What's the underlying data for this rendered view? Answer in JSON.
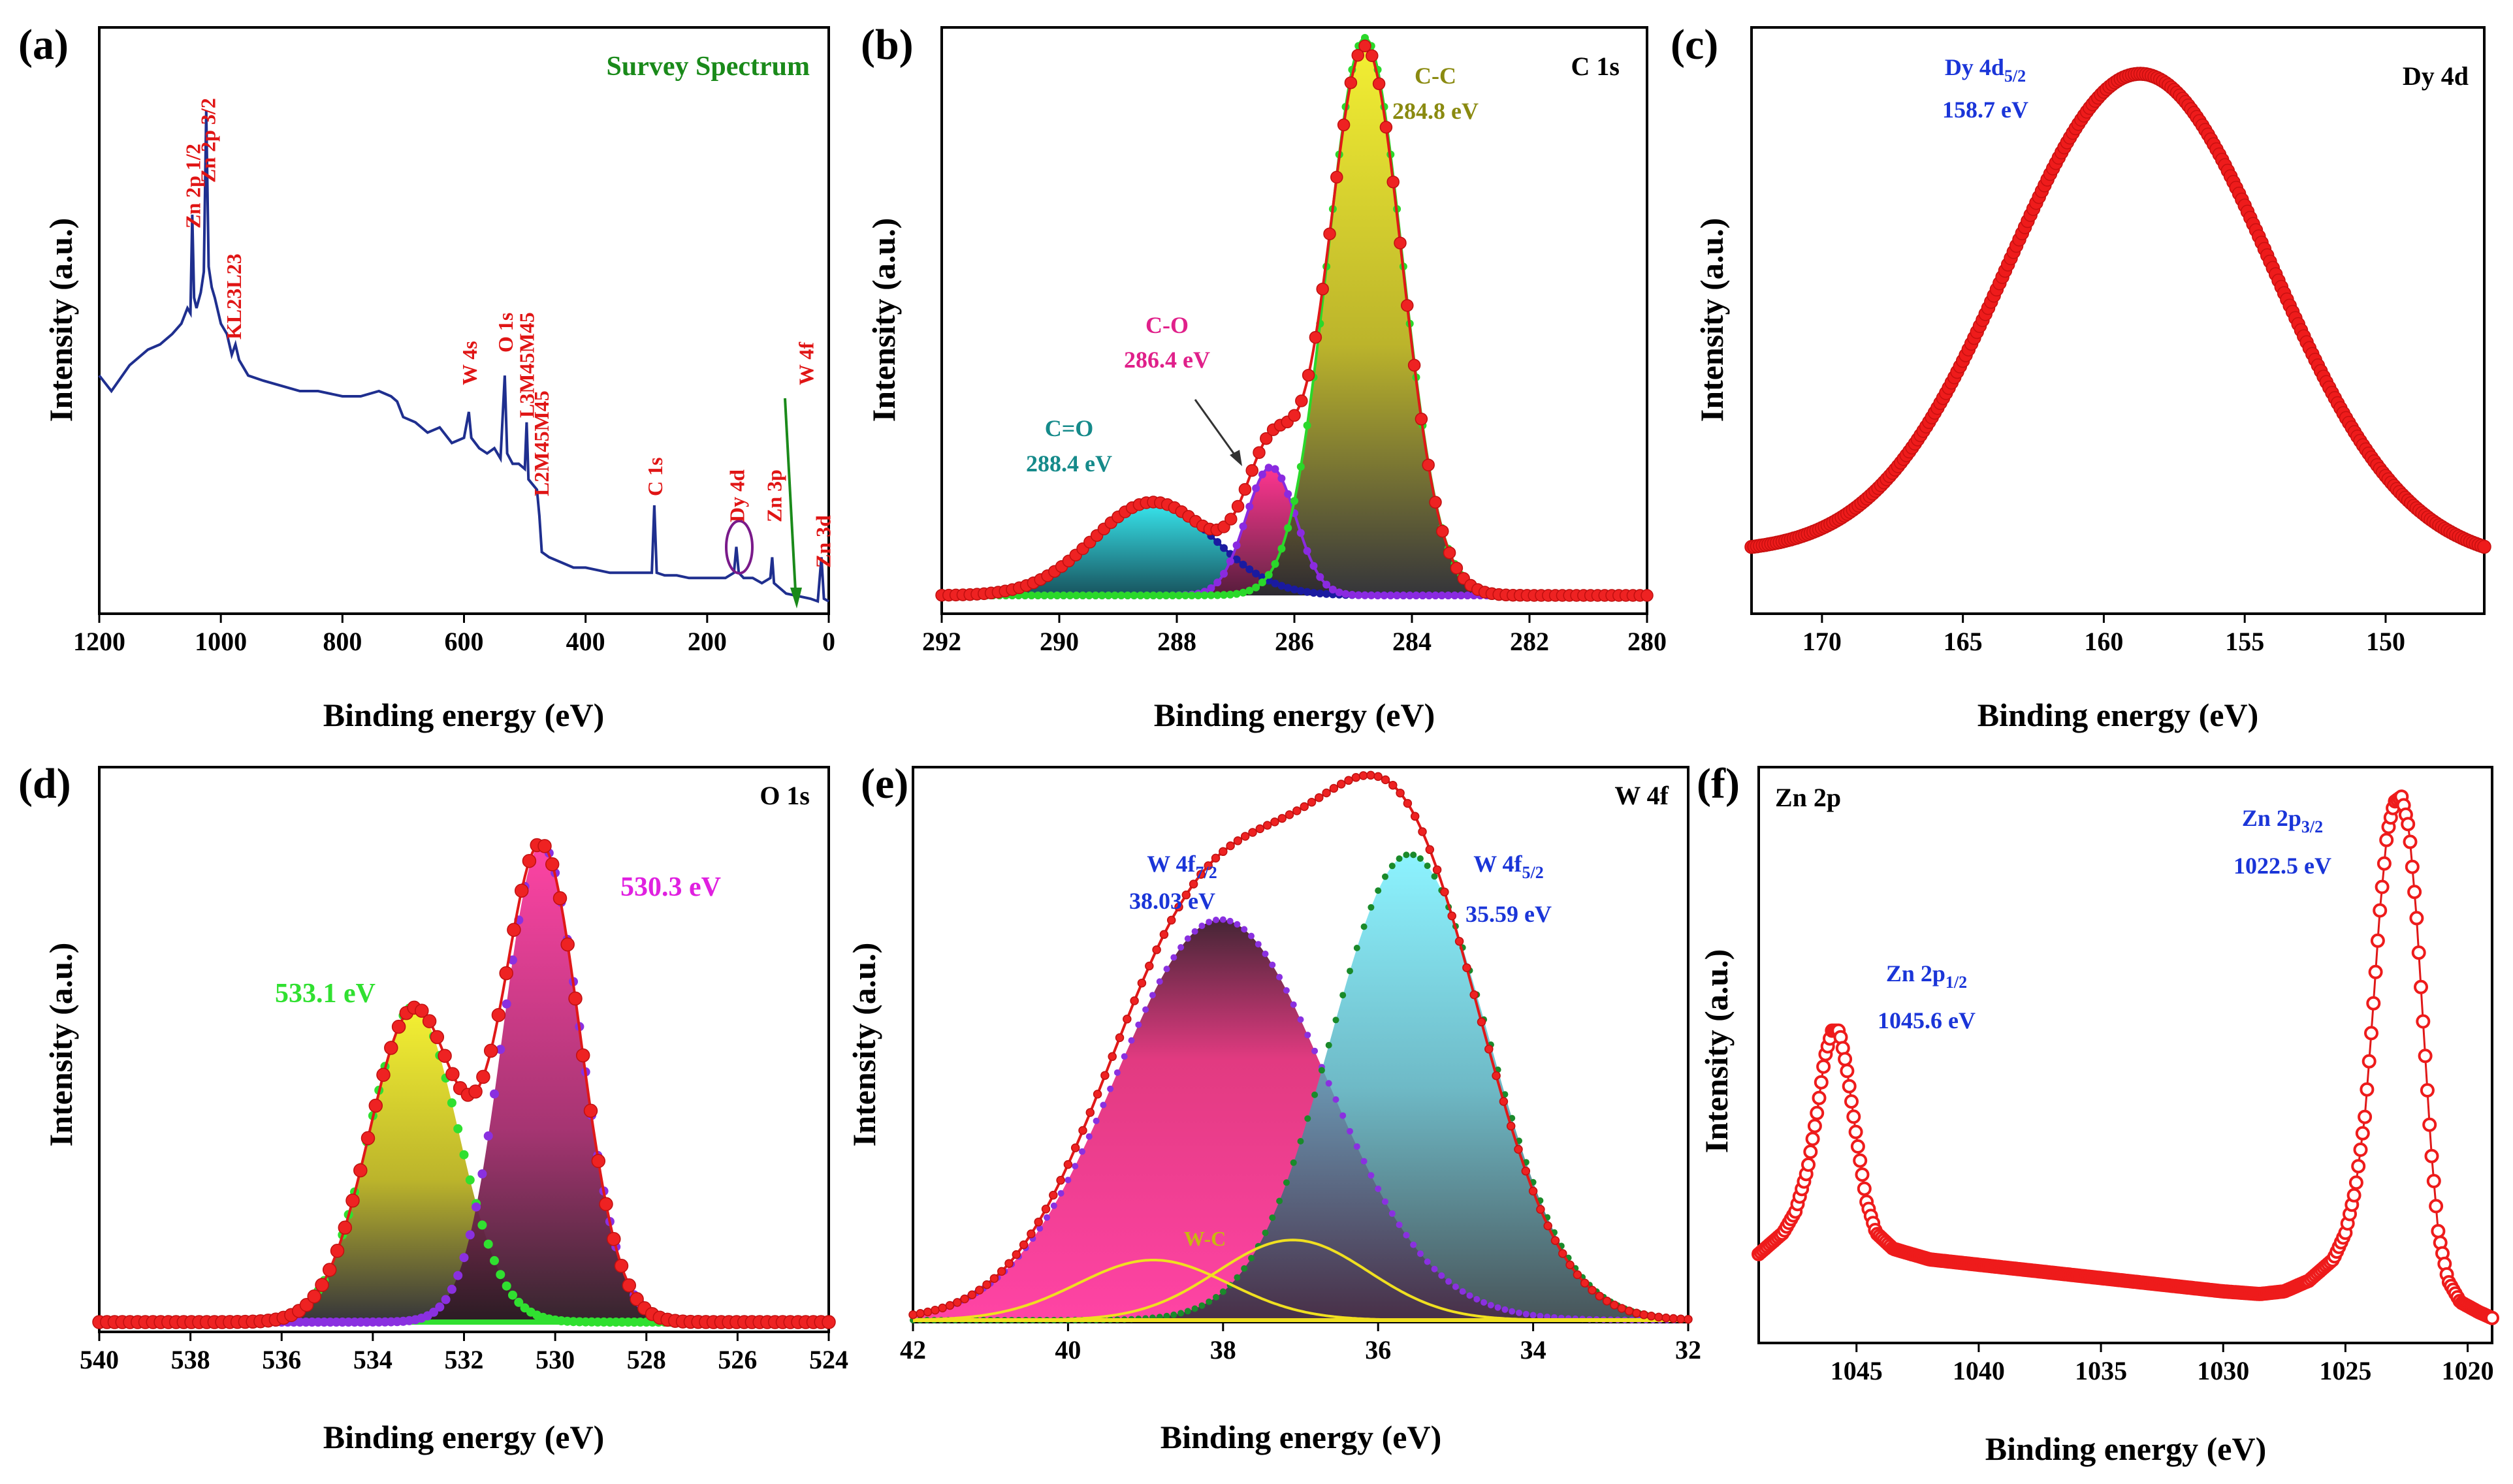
{
  "chart_data": [
    {
      "panel": "(a)",
      "type": "line",
      "title": "Survey Spectrum",
      "xlabel": "Binding energy (eV)",
      "ylabel": "Intensity (a.u.)",
      "xlim": [
        1200,
        0
      ],
      "ylim": [
        0,
        100
      ],
      "xticks": [
        "1200",
        "1000",
        "800",
        "600",
        "400",
        "200",
        "0"
      ],
      "colors": {
        "line": "#1f2f8f",
        "label": "#e01515",
        "title": "#1a8a1a",
        "arrow": "#1a8a1a",
        "circle": "#7a1a8a"
      },
      "series": [
        {
          "name": "Survey",
          "points": [
            [
              1200,
              44
            ],
            [
              1180,
              41
            ],
            [
              1150,
              46
            ],
            [
              1120,
              49
            ],
            [
              1100,
              50
            ],
            [
              1080,
              52
            ],
            [
              1065,
              54
            ],
            [
              1055,
              57
            ],
            [
              1050,
              56
            ],
            [
              1047,
              75
            ],
            [
              1044,
              59
            ],
            [
              1040,
              57
            ],
            [
              1033,
              60
            ],
            [
              1028,
              64
            ],
            [
              1024,
              95
            ],
            [
              1020,
              65
            ],
            [
              1015,
              61
            ],
            [
              1010,
              59
            ],
            [
              1000,
              54
            ],
            [
              990,
              52
            ],
            [
              982,
              48
            ],
            [
              976,
              50
            ],
            [
              970,
              47
            ],
            [
              955,
              44
            ],
            [
              930,
              43
            ],
            [
              900,
              42
            ],
            [
              870,
              41
            ],
            [
              840,
              41
            ],
            [
              800,
              40
            ],
            [
              770,
              40
            ],
            [
              740,
              41
            ],
            [
              720,
              40
            ],
            [
              710,
              39
            ],
            [
              700,
              36
            ],
            [
              680,
              35
            ],
            [
              660,
              33
            ],
            [
              640,
              34
            ],
            [
              620,
              31
            ],
            [
              600,
              32
            ],
            [
              592,
              37
            ],
            [
              588,
              32
            ],
            [
              575,
              30
            ],
            [
              562,
              29
            ],
            [
              550,
              30
            ],
            [
              540,
              28
            ],
            [
              533,
              44
            ],
            [
              529,
              29
            ],
            [
              520,
              27
            ],
            [
              510,
              27
            ],
            [
              500,
              26
            ],
            [
              497,
              35
            ],
            [
              494,
              24
            ],
            [
              480,
              22
            ],
            [
              476,
              17
            ],
            [
              472,
              10
            ],
            [
              460,
              9
            ],
            [
              440,
              8
            ],
            [
              420,
              7
            ],
            [
              400,
              7
            ],
            [
              380,
              6.5
            ],
            [
              360,
              6
            ],
            [
              340,
              6
            ],
            [
              320,
              6
            ],
            [
              300,
              6
            ],
            [
              291,
              6
            ],
            [
              287,
              19
            ],
            [
              283,
              6
            ],
            [
              270,
              5.5
            ],
            [
              250,
              5.5
            ],
            [
              230,
              5
            ],
            [
              210,
              5
            ],
            [
              190,
              5
            ],
            [
              170,
              5
            ],
            [
              156,
              6
            ],
            [
              152,
              11
            ],
            [
              148,
              6
            ],
            [
              140,
              5
            ],
            [
              125,
              5
            ],
            [
              110,
              4
            ],
            [
              96,
              5
            ],
            [
              93,
              9
            ],
            [
              90,
              4
            ],
            [
              80,
              3
            ],
            [
              70,
              2
            ],
            [
              50,
              1.5
            ],
            [
              30,
              1
            ],
            [
              18,
              0.5
            ],
            [
              12,
              9
            ],
            [
              8,
              1
            ],
            [
              0,
              0.5
            ]
          ]
        }
      ],
      "annotations": [
        {
          "label": "Zn 2p",
          "sub": "1/2",
          "x": 1047
        },
        {
          "label": "Zn 2p",
          "sub": "3/2",
          "x": 1022
        },
        {
          "label": "KL23L23",
          "x": 980
        },
        {
          "label": "W 4s",
          "x": 592
        },
        {
          "label": "O 1s",
          "x": 533
        },
        {
          "label": "L3M45M45",
          "x": 498
        },
        {
          "label": "L2M45M45",
          "x": 474
        },
        {
          "label": "C 1s",
          "x": 287
        },
        {
          "label": "Dy 4d",
          "x": 152
        },
        {
          "label": "Zn 3p",
          "x": 91
        },
        {
          "label": "W 4f",
          "x": 38
        },
        {
          "label": "Zn 3d",
          "x": 10
        }
      ]
    },
    {
      "panel": "(b)",
      "type": "line",
      "title": "C 1s",
      "xlabel": "Binding energy (eV)",
      "ylabel": "Intensity (a.u.)",
      "xlim": [
        292,
        280
      ],
      "ylim": [
        0,
        100
      ],
      "xticks": [
        "292",
        "290",
        "288",
        "286",
        "284",
        "282",
        "280"
      ],
      "series": [
        {
          "name": "C=O",
          "center": 288.4,
          "height": 17,
          "fwhm": 2.4,
          "color": "#23c4cc"
        },
        {
          "name": "C-O",
          "center": 286.4,
          "height": 23,
          "fwhm": 1.0,
          "color": "#e0407a"
        },
        {
          "name": "C-C",
          "center": 284.8,
          "height": 100,
          "fwhm": 1.5,
          "color": "#e8e020"
        }
      ],
      "annotations": [
        {
          "label": "C-C",
          "value": "284.8 eV",
          "color": "#8a8a10"
        },
        {
          "label": "C-O",
          "value": "286.4 eV",
          "color": "#e0208a"
        },
        {
          "label": "C=O",
          "value": "288.4 eV",
          "color": "#158a8a"
        }
      ]
    },
    {
      "panel": "(c)",
      "type": "scatter",
      "title": "Dy 4d",
      "xlabel": "Binding energy (eV)",
      "ylabel": "Intensity (a.u.)",
      "xlim": [
        172.5,
        146.5
      ],
      "ylim": [
        0,
        100
      ],
      "xticks": [
        "170",
        "165",
        "160",
        "155",
        "150"
      ],
      "series": [
        {
          "name": "Dy 4d",
          "center": 158.7,
          "height": 100,
          "fwhm": 11,
          "baseline_left": 2,
          "baseline_right": 0,
          "color": "#ee1b1b"
        }
      ],
      "annotations": [
        {
          "label": "Dy 4d",
          "sub": "5/2",
          "value": "158.7 eV",
          "color": "#1a35d8"
        }
      ]
    },
    {
      "panel": "(d)",
      "type": "line",
      "title": "O 1s",
      "xlabel": "Binding energy (eV)",
      "ylabel": "Intensity (a.u.)",
      "xlim": [
        540,
        524
      ],
      "ylim": [
        0,
        100
      ],
      "xticks": [
        "540",
        "538",
        "536",
        "534",
        "532",
        "530",
        "528",
        "526",
        "524"
      ],
      "series": [
        {
          "name": "533.1 eV",
          "center": 533.1,
          "height": 64,
          "fwhm": 2.3,
          "color": "#e8e020"
        },
        {
          "name": "530.3 eV",
          "center": 530.3,
          "height": 97,
          "fwhm": 2.0,
          "color": "#ee3090"
        }
      ],
      "annotations": [
        {
          "value": "530.3 eV",
          "color": "#e020e0"
        },
        {
          "value": "533.1 eV",
          "color": "#30e030"
        }
      ]
    },
    {
      "panel": "(e)",
      "type": "line",
      "title": "W 4f",
      "xlabel": "Binding energy (eV)",
      "ylabel": "Intensity (a.u.)",
      "xlim": [
        42,
        32
      ],
      "ylim": [
        0,
        100
      ],
      "xticks": [
        "42",
        "40",
        "38",
        "36",
        "34",
        "32"
      ],
      "series": [
        {
          "name": "W 4f7/2",
          "center": 38.03,
          "height": 80,
          "fwhm": 3.2,
          "color": "#ee3090"
        },
        {
          "name": "W 4f5/2",
          "center": 35.59,
          "height": 93,
          "fwhm": 2.4,
          "color": "#40e0f0"
        },
        {
          "name": "W-C",
          "center": 38.9,
          "height": 12,
          "fwhm": 2.3,
          "color": "#f0e020"
        },
        {
          "name": "W-C",
          "center": 37.1,
          "height": 16,
          "fwhm": 2.3,
          "color": "#f0e020"
        }
      ],
      "annotations": [
        {
          "label": "W 4f",
          "sub": "7/2",
          "value": "38.03 eV",
          "color": "#1a35d8"
        },
        {
          "label": "W 4f",
          "sub": "5/2",
          "value": "35.59 eV",
          "color": "#1a35d8"
        },
        {
          "label": "W-C",
          "color": "#c8b810"
        }
      ]
    },
    {
      "panel": "(f)",
      "type": "scatter",
      "title": "Zn 2p",
      "xlabel": "Binding energy (eV)",
      "ylabel": "Intensity (a.u.)",
      "xlim": [
        1049,
        1019
      ],
      "ylim": [
        0,
        100
      ],
      "xticks": [
        "1045",
        "1040",
        "1035",
        "1030",
        "1025",
        "1020"
      ],
      "series": [
        {
          "name": "Zn 2p",
          "color": "#ee1b1b",
          "points": [
            [
              1049,
              14
            ],
            [
              1048.5,
              16
            ],
            [
              1048,
              18
            ],
            [
              1047.5,
              22
            ],
            [
              1047,
              30
            ],
            [
              1046.6,
              41
            ],
            [
              1046.3,
              51
            ],
            [
              1046,
              56
            ],
            [
              1045.7,
              56
            ],
            [
              1045.4,
              49
            ],
            [
              1045,
              36
            ],
            [
              1044.6,
              24
            ],
            [
              1044.2,
              18
            ],
            [
              1043.5,
              15
            ],
            [
              1042,
              13
            ],
            [
              1040,
              12
            ],
            [
              1038,
              11
            ],
            [
              1036,
              10
            ],
            [
              1034,
              9
            ],
            [
              1032,
              8
            ],
            [
              1030,
              7
            ],
            [
              1028.5,
              6.5
            ],
            [
              1027.5,
              7
            ],
            [
              1026.5,
              9
            ],
            [
              1025.5,
              13
            ],
            [
              1025,
              18
            ],
            [
              1024.6,
              26
            ],
            [
              1024.2,
              40
            ],
            [
              1023.9,
              58
            ],
            [
              1023.6,
              78
            ],
            [
              1023.3,
              93
            ],
            [
              1023,
              99
            ],
            [
              1022.7,
              100
            ],
            [
              1022.4,
              94
            ],
            [
              1022.1,
              78
            ],
            [
              1021.8,
              56
            ],
            [
              1021.5,
              34
            ],
            [
              1021.2,
              18
            ],
            [
              1020.8,
              9
            ],
            [
              1020.3,
              5
            ],
            [
              1019.5,
              3
            ],
            [
              1019,
              2
            ]
          ]
        }
      ],
      "annotations": [
        {
          "label": "Zn 2p",
          "sub": "3/2",
          "value": "1022.5 eV",
          "color": "#1a35d8"
        },
        {
          "label": "Zn 2p",
          "sub": "1/2",
          "value": "1045.6 eV",
          "color": "#1a35d8"
        }
      ]
    }
  ]
}
